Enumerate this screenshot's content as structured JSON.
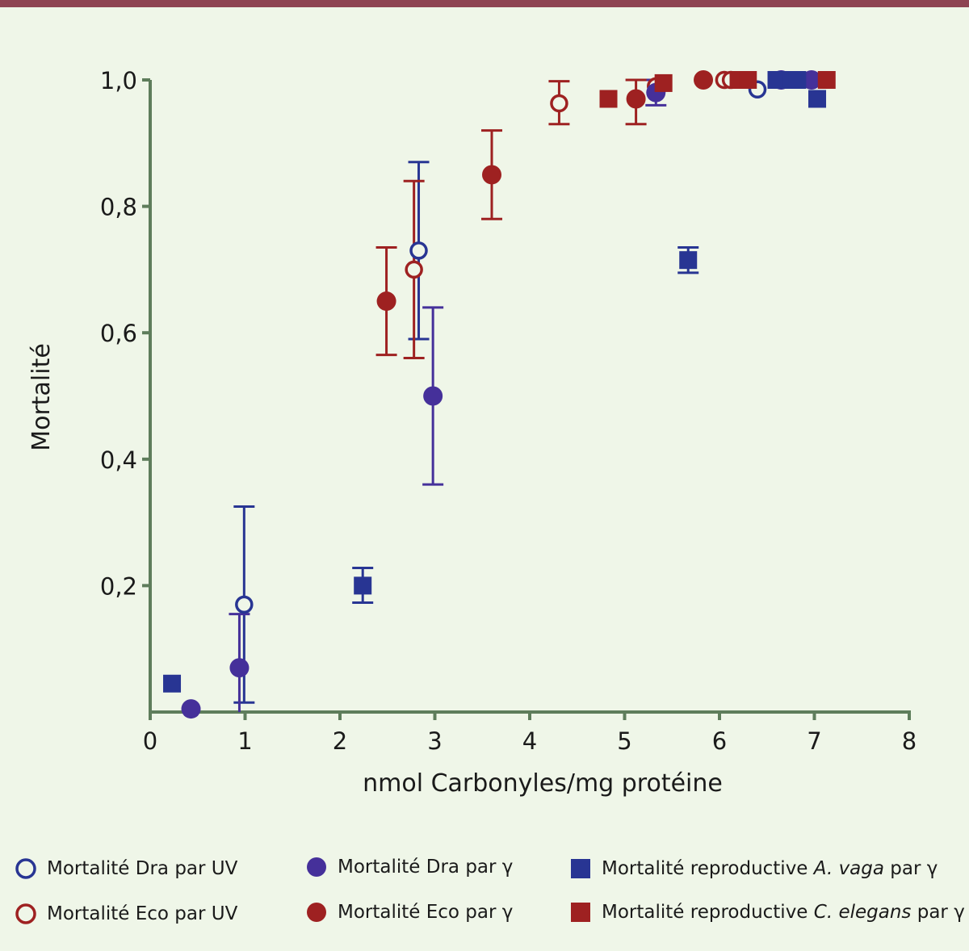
{
  "colors": {
    "background": "#eff6e8",
    "top_bar": "#8e4452",
    "axis": "#5e7d5b",
    "dra_blue": "#283593",
    "dra_purple": "#45309a",
    "eco_red": "#9e2121"
  },
  "chart_data": {
    "type": "scatter",
    "title": "",
    "xlabel": "nmol Carbonyles/mg protéine",
    "ylabel": "Mortalité",
    "xlim": [
      0,
      8
    ],
    "ylim": [
      0,
      1.0
    ],
    "xticks": [
      0,
      1,
      2,
      3,
      4,
      5,
      6,
      7,
      8
    ],
    "xtick_labels": [
      "0",
      "1",
      "2",
      "3",
      "4",
      "5",
      "6",
      "7",
      "8"
    ],
    "yticks": [
      0.2,
      0.4,
      0.6,
      0.8,
      1.0
    ],
    "ytick_labels": [
      "0,2",
      "0,4",
      "0,6",
      "0,8",
      "1,0"
    ],
    "grid": false,
    "legend_position": "bottom",
    "series": [
      {
        "name": "Mortalité Dra par UV",
        "marker": "open-circle",
        "color": "#283593",
        "points": [
          {
            "x": 0.99,
            "y": 0.17,
            "err_low": 0.015,
            "err_high": 0.325
          },
          {
            "x": 2.83,
            "y": 0.73,
            "err_low": 0.59,
            "err_high": 0.87
          },
          {
            "x": 6.4,
            "y": 0.985
          }
        ]
      },
      {
        "name": "Mortalité Eco par UV",
        "marker": "open-circle",
        "color": "#9e2121",
        "points": [
          {
            "x": 2.78,
            "y": 0.7,
            "err_low": 0.56,
            "err_high": 0.84
          },
          {
            "x": 4.31,
            "y": 0.963,
            "err_low": 0.93,
            "err_high": 0.998
          },
          {
            "x": 5.33,
            "y": 0.99
          },
          {
            "x": 6.05,
            "y": 1.0
          },
          {
            "x": 6.12,
            "y": 1.0
          }
        ]
      },
      {
        "name": "Mortalité Dra par γ",
        "marker": "filled-circle",
        "color": "#45309a",
        "points": [
          {
            "x": 0.43,
            "y": 0.005
          },
          {
            "x": 0.94,
            "y": 0.07,
            "err_low": 0.0,
            "err_high": 0.155
          },
          {
            "x": 2.98,
            "y": 0.5,
            "err_low": 0.36,
            "err_high": 0.64
          },
          {
            "x": 5.33,
            "y": 0.98,
            "err_low": 0.96,
            "err_high": 1.0
          },
          {
            "x": 6.65,
            "y": 1.0
          },
          {
            "x": 6.97,
            "y": 1.0
          }
        ]
      },
      {
        "name": "Mortalité Eco par γ",
        "marker": "filled-circle",
        "color": "#9e2121",
        "points": [
          {
            "x": 2.49,
            "y": 0.65,
            "err_low": 0.565,
            "err_high": 0.735
          },
          {
            "x": 3.6,
            "y": 0.85,
            "err_low": 0.78,
            "err_high": 0.92
          },
          {
            "x": 5.12,
            "y": 0.97,
            "err_low": 0.93,
            "err_high": 1.0
          },
          {
            "x": 5.83,
            "y": 1.0
          }
        ]
      },
      {
        "name": "Mortalité reproductive A. vaga par γ",
        "marker": "filled-square",
        "color": "#283593",
        "points": [
          {
            "x": 0.23,
            "y": 0.045
          },
          {
            "x": 2.24,
            "y": 0.2,
            "err_low": 0.173,
            "err_high": 0.228
          },
          {
            "x": 5.67,
            "y": 0.715,
            "err_low": 0.695,
            "err_high": 0.735
          },
          {
            "x": 6.6,
            "y": 1.0
          },
          {
            "x": 6.75,
            "y": 1.0
          },
          {
            "x": 6.82,
            "y": 1.0
          },
          {
            "x": 7.03,
            "y": 0.97
          }
        ]
      },
      {
        "name": "Mortalité reproductive C. elegans par γ",
        "marker": "filled-square",
        "color": "#9e2121",
        "points": [
          {
            "x": 4.83,
            "y": 0.97
          },
          {
            "x": 5.41,
            "y": 0.995
          },
          {
            "x": 6.2,
            "y": 1.0
          },
          {
            "x": 6.3,
            "y": 1.0
          },
          {
            "x": 7.13,
            "y": 1.0
          }
        ]
      }
    ]
  },
  "legend": {
    "items": [
      {
        "marker": "open-circle",
        "color": "#283593",
        "label": "Mortalité Dra par UV"
      },
      {
        "marker": "open-circle",
        "color": "#9e2121",
        "label": "Mortalité Eco par UV"
      },
      {
        "marker": "filled-circle",
        "color": "#45309a",
        "label": "Mortalité Dra par γ"
      },
      {
        "marker": "filled-circle",
        "color": "#9e2121",
        "label": "Mortalité Eco par γ"
      },
      {
        "marker": "filled-square",
        "color": "#283593",
        "label_prefix": "Mortalité reproductive ",
        "label_italic": "A. vaga",
        "label_suffix": " par γ"
      },
      {
        "marker": "filled-square",
        "color": "#9e2121",
        "label_prefix": "Mortalité reproductive ",
        "label_italic": "C. elegans",
        "label_suffix": " par γ"
      }
    ]
  }
}
